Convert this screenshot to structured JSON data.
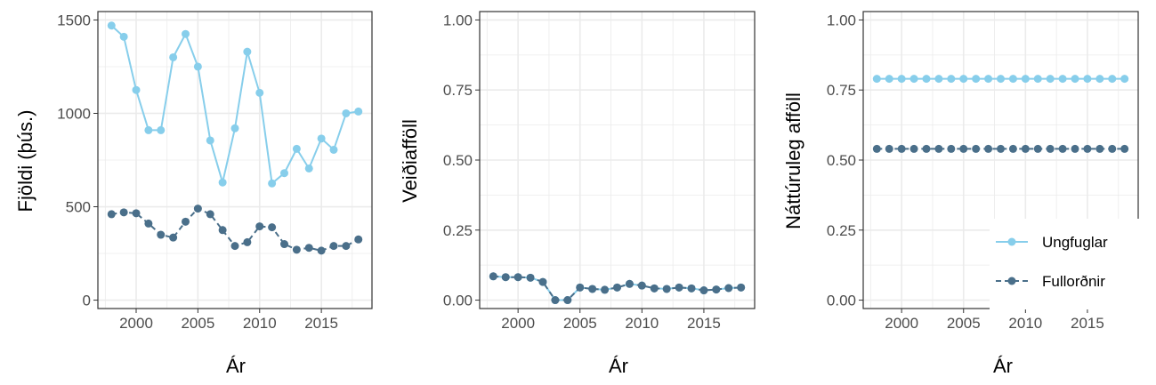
{
  "colors": {
    "ungfuglar": "#87CEEB",
    "fullordnir": "#4A6F8A",
    "grid": "#ebebeb",
    "frame": "#333333"
  },
  "legend": {
    "ungfuglar": "Ungfuglar",
    "fullordnir": "Fullorðnir"
  },
  "chart_data": [
    {
      "type": "line",
      "xlabel": "Ár",
      "ylabel": "Fjöldi (þús.)",
      "x": [
        1998,
        1999,
        2000,
        2001,
        2002,
        2003,
        2004,
        2005,
        2006,
        2007,
        2008,
        2009,
        2010,
        2011,
        2012,
        2013,
        2014,
        2015,
        2016,
        2017,
        2018
      ],
      "xlim": [
        1996.9,
        2019.1
      ],
      "ylim": [
        -45,
        1545
      ],
      "xticks": [
        2000,
        2005,
        2010,
        2015
      ],
      "yticks": [
        0,
        500,
        1000,
        1500
      ],
      "yticklabels": [
        "0",
        "500",
        "1000",
        "1500"
      ],
      "series": [
        {
          "key": "ungfuglar",
          "name": "Ungfuglar",
          "style": "solid",
          "values": [
            1470,
            1410,
            1125,
            910,
            910,
            1300,
            1425,
            1250,
            855,
            630,
            920,
            1330,
            1110,
            625,
            680,
            810,
            705,
            865,
            805,
            1000,
            1010
          ]
        },
        {
          "key": "fullordnir",
          "name": "Fullorðnir",
          "style": "dashed",
          "values": [
            460,
            470,
            465,
            410,
            350,
            335,
            420,
            490,
            460,
            375,
            290,
            310,
            395,
            390,
            300,
            270,
            280,
            265,
            290,
            290,
            325
          ]
        }
      ]
    },
    {
      "type": "line",
      "xlabel": "Ár",
      "ylabel": "Veiðiafföll",
      "x": [
        1998,
        1999,
        2000,
        2001,
        2002,
        2003,
        2004,
        2005,
        2006,
        2007,
        2008,
        2009,
        2010,
        2011,
        2012,
        2013,
        2014,
        2015,
        2016,
        2017,
        2018
      ],
      "xlim": [
        1996.9,
        2019.1
      ],
      "ylim": [
        -0.03,
        1.03
      ],
      "xticks": [
        2000,
        2005,
        2010,
        2015
      ],
      "yticks": [
        0,
        0.25,
        0.5,
        0.75,
        1
      ],
      "yticklabels": [
        "0.00",
        "0.25",
        "0.50",
        "0.75",
        "1.00"
      ],
      "series": [
        {
          "key": "ungfuglar",
          "name": "Ungfuglar",
          "style": "solid",
          "values": [
            0.085,
            0.082,
            0.082,
            0.08,
            0.065,
            0.0,
            0.0,
            0.045,
            0.04,
            0.037,
            0.045,
            0.058,
            0.052,
            0.042,
            0.04,
            0.045,
            0.042,
            0.035,
            0.038,
            0.043,
            0.045
          ]
        },
        {
          "key": "fullordnir",
          "name": "Fullorðnir",
          "style": "dashed",
          "values": [
            0.085,
            0.082,
            0.082,
            0.08,
            0.065,
            0.0,
            0.0,
            0.045,
            0.04,
            0.037,
            0.045,
            0.058,
            0.052,
            0.042,
            0.04,
            0.045,
            0.042,
            0.035,
            0.038,
            0.043,
            0.045
          ]
        }
      ]
    },
    {
      "type": "line",
      "xlabel": "Ár",
      "ylabel": "Náttúruleg afföll",
      "x": [
        1998,
        1999,
        2000,
        2001,
        2002,
        2003,
        2004,
        2005,
        2006,
        2007,
        2008,
        2009,
        2010,
        2011,
        2012,
        2013,
        2014,
        2015,
        2016,
        2017,
        2018
      ],
      "xlim": [
        1996.9,
        2019.1
      ],
      "ylim": [
        -0.03,
        1.03
      ],
      "xticks": [
        2000,
        2005,
        2010,
        2015
      ],
      "yticks": [
        0,
        0.25,
        0.5,
        0.75,
        1
      ],
      "yticklabels": [
        "0.00",
        "0.25",
        "0.50",
        "0.75",
        "1.00"
      ],
      "legend": "bottom-right",
      "series": [
        {
          "key": "ungfuglar",
          "name": "Ungfuglar",
          "style": "solid",
          "values": [
            0.79,
            0.79,
            0.79,
            0.79,
            0.79,
            0.79,
            0.79,
            0.79,
            0.79,
            0.79,
            0.79,
            0.79,
            0.79,
            0.79,
            0.79,
            0.79,
            0.79,
            0.79,
            0.79,
            0.79,
            0.79
          ]
        },
        {
          "key": "fullordnir",
          "name": "Fullorðnir",
          "style": "dashed",
          "values": [
            0.54,
            0.54,
            0.54,
            0.54,
            0.54,
            0.54,
            0.54,
            0.54,
            0.54,
            0.54,
            0.54,
            0.54,
            0.54,
            0.54,
            0.54,
            0.54,
            0.54,
            0.54,
            0.54,
            0.54,
            0.54
          ]
        }
      ]
    }
  ]
}
